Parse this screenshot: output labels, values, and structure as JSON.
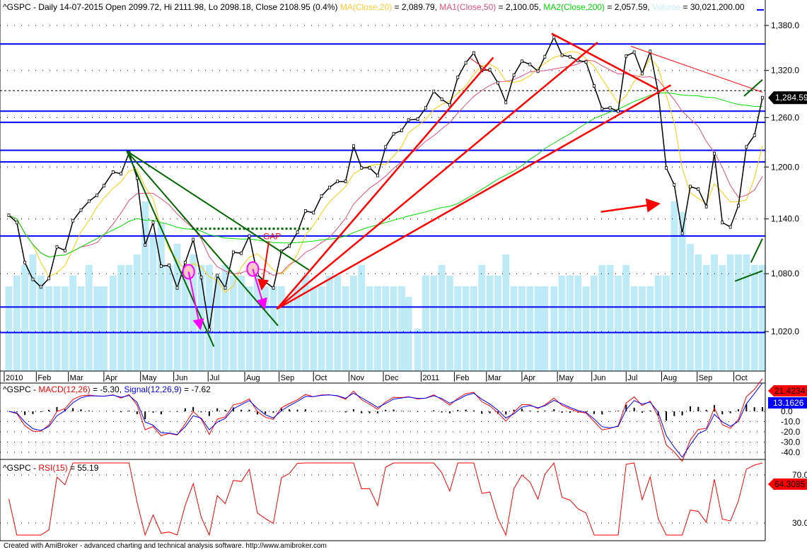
{
  "header": {
    "price": "^GSPC - Daily 14-07-2015 Open 2099.72, Hi 2111.98, Lo 2098.18, Close 2108.95 (0.4%)",
    "ma_label": "MA(Close,20)",
    "ma_value": " = 2,089.79, ",
    "ma1_label": "MA1(Close,50)",
    "ma1_value": " = 2,100.05, ",
    "ma2_label": "MA2(Close,200)",
    "ma2_value": " = 2,057.59, ",
    "vol_label": "Volume",
    "vol_value": " = 30,021,200.00",
    "macd_prefix": "^GSPC - ",
    "macd_label": "MACD(12,26)",
    "macd_value": " = -5.30, ",
    "signal_label": "Signal(12,26,9)",
    "signal_value": " = -7.62",
    "rsi_prefix": "^GSPC - ",
    "rsi_label": "RSI(15)",
    "rsi_value": " = 55.19"
  },
  "footer": "Created with AmiBroker - advanced charting and technical analysis software. http://www.amibroker.com",
  "colors": {
    "price": "#000000",
    "ma": "#ffcc00",
    "ma1": "#e0507a",
    "ma2": "#00dd00",
    "volume": "#bfeaf8",
    "macd": "#ff0000",
    "signal": "#0000ff",
    "rsi": "#ff0000",
    "support": "#0000ff",
    "trend_red": "#ff0000",
    "trend_green": "#006600",
    "arrow_pink": "#ff00ff"
  },
  "chart_data": [
    {
      "type": "line",
      "title": "^GSPC",
      "yscale": "log",
      "ylim": [
        990,
        1395
      ],
      "yticks": [
        "1,380.0",
        "1,320.0",
        "1,260.0",
        "1,200.0",
        "1,140.0",
        "1,080.0",
        "1,020.0"
      ],
      "ytick_values": [
        1380,
        1320,
        1260,
        1200,
        1140,
        1080,
        1020
      ],
      "xticks": [
        [
          "2010-01-04",
          "2010"
        ],
        [
          "2010-02-01",
          "Feb"
        ],
        [
          "2010-03-01",
          "Mar"
        ],
        [
          "2010-04-01",
          "Apr"
        ],
        [
          "2010-05-03",
          "May"
        ],
        [
          "2010-06-01",
          "Jun"
        ],
        [
          "2010-07-01",
          "Jul"
        ],
        [
          "2010-08-02",
          "Aug"
        ],
        [
          "2010-09-01",
          "Sep"
        ],
        [
          "2010-10-01",
          "Oct"
        ],
        [
          "2010-11-01",
          "Nov"
        ],
        [
          "2010-12-01",
          "Dec"
        ],
        [
          "2011-01-03",
          "2011"
        ],
        [
          "2011-02-01",
          "Feb"
        ],
        [
          "2011-03-01",
          "Mar"
        ],
        [
          "2011-04-01",
          "Apr"
        ],
        [
          "2011-05-02",
          "May"
        ],
        [
          "2011-06-01",
          "Jun"
        ],
        [
          "2011-07-01",
          "Jul"
        ],
        [
          "2011-08-01",
          "Aug"
        ],
        [
          "2011-09-01",
          "Sep"
        ],
        [
          "2011-10-03",
          "Oct"
        ]
      ],
      "last_price_label": "1,284.59",
      "closes": [
        [
          "2010-01-08",
          1144
        ],
        [
          "2010-01-15",
          1136
        ],
        [
          "2010-01-22",
          1092
        ],
        [
          "2010-01-29",
          1074
        ],
        [
          "2010-02-05",
          1066
        ],
        [
          "2010-02-12",
          1075
        ],
        [
          "2010-02-19",
          1109
        ],
        [
          "2010-02-26",
          1105
        ],
        [
          "2010-03-05",
          1138
        ],
        [
          "2010-03-12",
          1150
        ],
        [
          "2010-03-19",
          1160
        ],
        [
          "2010-03-26",
          1167
        ],
        [
          "2010-04-01",
          1178
        ],
        [
          "2010-04-09",
          1194
        ],
        [
          "2010-04-16",
          1192
        ],
        [
          "2010-04-23",
          1217
        ],
        [
          "2010-04-30",
          1187
        ],
        [
          "2010-05-07",
          1111
        ],
        [
          "2010-05-14",
          1136
        ],
        [
          "2010-05-21",
          1088
        ],
        [
          "2010-05-28",
          1089
        ],
        [
          "2010-06-04",
          1065
        ],
        [
          "2010-06-11",
          1092
        ],
        [
          "2010-06-18",
          1117
        ],
        [
          "2010-06-25",
          1076
        ],
        [
          "2010-07-02",
          1022
        ],
        [
          "2010-07-09",
          1078
        ],
        [
          "2010-07-16",
          1065
        ],
        [
          "2010-07-23",
          1103
        ],
        [
          "2010-07-30",
          1102
        ],
        [
          "2010-08-06",
          1121
        ],
        [
          "2010-08-13",
          1079
        ],
        [
          "2010-08-20",
          1071
        ],
        [
          "2010-08-27",
          1065
        ],
        [
          "2010-09-03",
          1104
        ],
        [
          "2010-09-10",
          1110
        ],
        [
          "2010-09-17",
          1125
        ],
        [
          "2010-09-24",
          1149
        ],
        [
          "2010-10-01",
          1147
        ],
        [
          "2010-10-08",
          1166
        ],
        [
          "2010-10-15",
          1176
        ],
        [
          "2010-10-22",
          1183
        ],
        [
          "2010-10-29",
          1183
        ],
        [
          "2010-11-05",
          1225
        ],
        [
          "2010-11-12",
          1199
        ],
        [
          "2010-11-19",
          1199
        ],
        [
          "2010-11-26",
          1190
        ],
        [
          "2010-12-03",
          1224
        ],
        [
          "2010-12-10",
          1240
        ],
        [
          "2010-12-17",
          1244
        ],
        [
          "2010-12-23",
          1257
        ],
        [
          "2010-12-31",
          1258
        ],
        [
          "2011-01-07",
          1272
        ],
        [
          "2011-01-14",
          1293
        ],
        [
          "2011-01-21",
          1283
        ],
        [
          "2011-01-28",
          1276
        ],
        [
          "2011-02-04",
          1311
        ],
        [
          "2011-02-11",
          1330
        ],
        [
          "2011-02-18",
          1343
        ],
        [
          "2011-02-25",
          1320
        ],
        [
          "2011-03-04",
          1321
        ],
        [
          "2011-03-11",
          1304
        ],
        [
          "2011-03-18",
          1279
        ],
        [
          "2011-03-25",
          1314
        ],
        [
          "2011-04-01",
          1332
        ],
        [
          "2011-04-08",
          1328
        ],
        [
          "2011-04-15",
          1319
        ],
        [
          "2011-04-21",
          1338
        ],
        [
          "2011-04-29",
          1364
        ],
        [
          "2011-05-06",
          1340
        ],
        [
          "2011-05-13",
          1338
        ],
        [
          "2011-05-20",
          1333
        ],
        [
          "2011-05-27",
          1331
        ],
        [
          "2011-06-03",
          1300
        ],
        [
          "2011-06-10",
          1271
        ],
        [
          "2011-06-17",
          1272
        ],
        [
          "2011-06-24",
          1268
        ],
        [
          "2011-07-01",
          1339
        ],
        [
          "2011-07-08",
          1344
        ],
        [
          "2011-07-15",
          1316
        ],
        [
          "2011-07-22",
          1345
        ],
        [
          "2011-07-29",
          1292
        ],
        [
          "2011-08-05",
          1199
        ],
        [
          "2011-08-12",
          1179
        ],
        [
          "2011-08-19",
          1124
        ],
        [
          "2011-08-26",
          1177
        ],
        [
          "2011-09-02",
          1174
        ],
        [
          "2011-09-09",
          1154
        ],
        [
          "2011-09-16",
          1216
        ],
        [
          "2011-09-23",
          1136
        ],
        [
          "2011-09-30",
          1131
        ],
        [
          "2011-10-07",
          1155
        ],
        [
          "2011-10-14",
          1224
        ],
        [
          "2011-10-21",
          1238
        ],
        [
          "2011-10-28",
          1285
        ]
      ],
      "volume_relative": [
        4,
        4.5,
        5,
        5.5,
        4.5,
        4,
        4,
        4,
        4.5,
        4,
        5,
        4,
        4,
        4.5,
        5,
        5,
        5.5,
        8,
        6.5,
        7,
        5,
        6,
        5,
        5.5,
        5,
        5,
        4.5,
        5,
        4.5,
        4.5,
        4,
        4.5,
        4,
        4,
        4,
        3.5,
        4,
        4.5,
        4,
        4,
        4.5,
        4.5,
        4,
        4.5,
        5,
        4,
        4,
        4,
        4,
        4,
        3.5,
        2,
        4.5,
        4.5,
        5,
        4.5,
        4,
        4,
        4,
        5,
        4.5,
        4.5,
        5.5,
        4,
        4,
        4,
        4,
        4,
        4,
        4.5,
        4.5,
        4.5,
        4,
        4.5,
        5,
        5,
        4.5,
        5,
        4,
        4,
        4,
        4.5,
        4.5,
        8,
        7.5,
        6,
        5.5,
        5,
        5.5,
        5,
        5.5,
        5.5,
        5.5,
        5,
        5
      ],
      "support_levels": [
        1355,
        1268,
        1254,
        1220,
        1206,
        1121,
        1045,
        1019
      ],
      "dashed_levels": [
        1294
      ],
      "trendlines_red": [
        [
          [
            "2010-08-30",
            1043
          ],
          [
            "2011-03-07",
            1337
          ]
        ],
        [
          [
            "2010-08-30",
            1043
          ],
          [
            "2011-06-06",
            1357
          ]
        ],
        [
          [
            "2010-08-30",
            1043
          ],
          [
            "2011-08-09",
            1301
          ]
        ],
        [
          [
            "2011-04-27",
            1369
          ],
          [
            "2011-07-28",
            1296
          ]
        ]
      ],
      "trendlines_red_thin": [
        [
          [
            "2011-07-05",
            1352
          ],
          [
            "2011-10-28",
            1292
          ]
        ],
        [
          [
            "2011-02-14",
            1337
          ],
          [
            "2011-03-04",
            1318
          ]
        ]
      ],
      "trendlines_green": [
        [
          [
            "2010-04-21",
            1219
          ],
          [
            "2010-08-31",
            1026
          ]
        ],
        [
          [
            "2010-04-21",
            1219
          ],
          [
            "2010-07-06",
            1005
          ]
        ],
        [
          [
            "2010-04-21",
            1219
          ],
          [
            "2010-09-27",
            1084
          ]
        ],
        [
          [
            "2011-10-12",
            1287
          ],
          [
            "2011-10-28",
            1308
          ]
        ],
        [
          [
            "2011-10-04",
            1072
          ],
          [
            "2011-10-28",
            1083
          ]
        ],
        [
          [
            "2011-10-18",
            1092
          ],
          [
            "2011-10-28",
            1118
          ]
        ]
      ],
      "dotted_green": [
        [
          "2010-06-17",
          1129
        ],
        [
          "2010-09-29",
          1129
        ]
      ],
      "arrow_red": [
        [
          "2011-06-09",
          1148
        ],
        [
          "2011-07-28",
          1157
        ]
      ],
      "arrows_pink": [
        [
          [
            "2010-06-14",
            1082
          ],
          [
            "2010-06-24",
            1024
          ]
        ],
        [
          [
            "2010-08-09",
            1085
          ],
          [
            "2010-08-19",
            1045
          ]
        ]
      ],
      "gap_label": "GAP",
      "gap_arrow": [
        [
          "2010-08-23",
          1115
        ],
        [
          "2010-08-17",
          1065
        ]
      ]
    },
    {
      "type": "line",
      "title": "MACD",
      "yticks": [
        "0.0",
        "-10.0",
        "-20.0",
        "-30.0",
        "-40.0"
      ],
      "ytick_values": [
        0,
        -10,
        -20,
        -30,
        -40
      ],
      "last_macd_label": "21.4234",
      "last_signal_label": "13.1626"
    },
    {
      "type": "line",
      "title": "RSI",
      "yticks": [
        "70.0",
        "30.0"
      ],
      "ytick_values": [
        70,
        30
      ],
      "last_label": "64.3085"
    }
  ]
}
